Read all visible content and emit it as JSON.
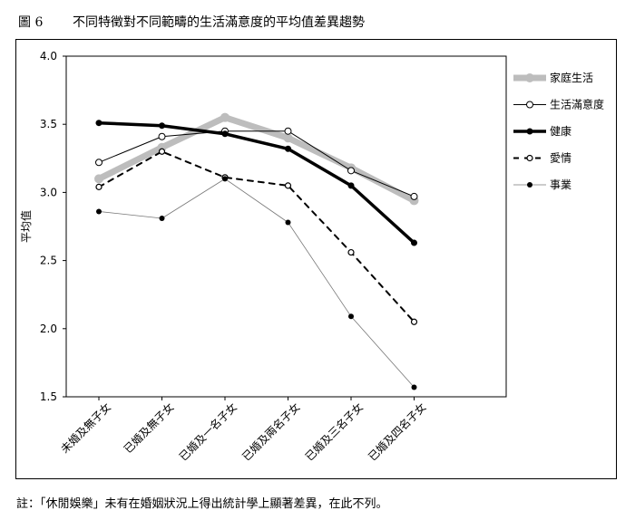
{
  "figure": {
    "number": "圖 6",
    "title": "不同特徵對不同範疇的生活滿意度的平均值差異趨勢"
  },
  "note": "註：「休閒娛樂」未有在婚姻狀況上得出統計學上顯著差異，在此不列。",
  "chart_data": {
    "type": "line",
    "title": "",
    "xlabel": "",
    "ylabel": "平均值",
    "ylim": [
      1.5,
      4.0
    ],
    "yticks": [
      "1.5",
      "2.0",
      "2.5",
      "3.0",
      "3.5",
      "4.0"
    ],
    "grid": false,
    "legend_position": "right",
    "categories": [
      "未婚及無子女",
      "已婚及無子女",
      "已婚及一名子女",
      "已婚及兩名子女",
      "已婚及三名子女",
      "已婚及四名子女"
    ],
    "series": [
      {
        "name": "家庭生活",
        "values": [
          3.1,
          3.33,
          3.55,
          3.4,
          3.18,
          2.94
        ],
        "color": "#bdbdbd",
        "style": "thick-gray"
      },
      {
        "name": "生活滿意度",
        "values": [
          3.22,
          3.41,
          3.45,
          3.45,
          3.16,
          2.97
        ],
        "color": "#000000",
        "style": "open-circle"
      },
      {
        "name": "健康",
        "values": [
          3.51,
          3.49,
          3.43,
          3.32,
          3.05,
          2.63
        ],
        "color": "#000000",
        "style": "bold-dash-marker"
      },
      {
        "name": "愛情",
        "values": [
          3.04,
          3.3,
          3.11,
          3.05,
          2.56,
          2.05
        ],
        "color": "#000000",
        "style": "dashed"
      },
      {
        "name": "事業",
        "values": [
          2.86,
          2.81,
          3.1,
          2.78,
          2.09,
          1.57
        ],
        "color": "#000000",
        "style": "thin-dot"
      }
    ]
  }
}
